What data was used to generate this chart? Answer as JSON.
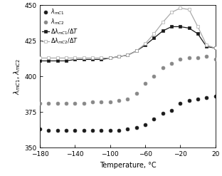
{
  "lambda_mC1": {
    "x": [
      -180,
      -170,
      -160,
      -150,
      -140,
      -130,
      -120,
      -110,
      -100,
      -90,
      -80,
      -70,
      -60,
      -50,
      -40,
      -30,
      -20,
      -10,
      0,
      10,
      20
    ],
    "y": [
      363,
      362,
      362,
      362,
      362,
      362,
      362,
      362,
      362,
      362,
      363,
      364,
      366,
      370,
      374,
      376,
      381,
      383,
      384,
      385,
      386
    ]
  },
  "lambda_mC2": {
    "x": [
      -180,
      -170,
      -160,
      -150,
      -140,
      -130,
      -120,
      -110,
      -100,
      -90,
      -80,
      -70,
      -60,
      -50,
      -40,
      -30,
      -20,
      -10,
      0,
      10,
      20
    ],
    "y": [
      381,
      381,
      381,
      381,
      381,
      381,
      382,
      382,
      382,
      383,
      384,
      388,
      395,
      400,
      406,
      409,
      412,
      413,
      413,
      414,
      412
    ]
  },
  "delta_mC1_dT": {
    "x": [
      -180,
      -170,
      -160,
      -150,
      -140,
      -130,
      -120,
      -110,
      -100,
      -90,
      -80,
      -70,
      -60,
      -50,
      -40,
      -30,
      -20,
      -10,
      0,
      10,
      20
    ],
    "y": [
      411,
      411,
      411,
      411,
      412,
      412,
      412,
      412,
      413,
      414,
      415,
      418,
      422,
      427,
      432,
      435,
      435,
      434,
      430,
      421,
      420
    ]
  },
  "delta_mC2_dT": {
    "x": [
      -180,
      -170,
      -160,
      -150,
      -140,
      -130,
      -120,
      -110,
      -100,
      -90,
      -80,
      -70,
      -60,
      -50,
      -40,
      -30,
      -20,
      -10,
      0,
      10,
      20
    ],
    "y": [
      413,
      413,
      413,
      413,
      413,
      413,
      413,
      413,
      413,
      414,
      415,
      418,
      423,
      430,
      438,
      445,
      448,
      447,
      435,
      422,
      420
    ]
  },
  "ylabel": "$\\lambda_{mC1}$, $\\lambda_{mC2}$",
  "xlabel": "Temperature, °C",
  "ylim": [
    350,
    450
  ],
  "xlim": [
    -180,
    20
  ],
  "yticks": [
    350,
    375,
    400,
    425,
    450
  ],
  "xticks": [
    -180,
    -140,
    -100,
    -60,
    -20,
    20
  ],
  "legend_labels": [
    "$\\lambda_{mC1}$",
    "$\\lambda_{mC2}$",
    "$\\Delta\\lambda_{mC1}/\\Delta T$",
    "$\\Delta\\lambda_{mC2}/\\Delta T$"
  ],
  "color_filled_black": "#1a1a1a",
  "color_filled_gray": "#888888",
  "color_line_black": "#1a1a1a",
  "color_line_gray": "#aaaaaa",
  "marker_size_circle": 3.5,
  "marker_size_square": 3.5,
  "linewidth": 0.9
}
